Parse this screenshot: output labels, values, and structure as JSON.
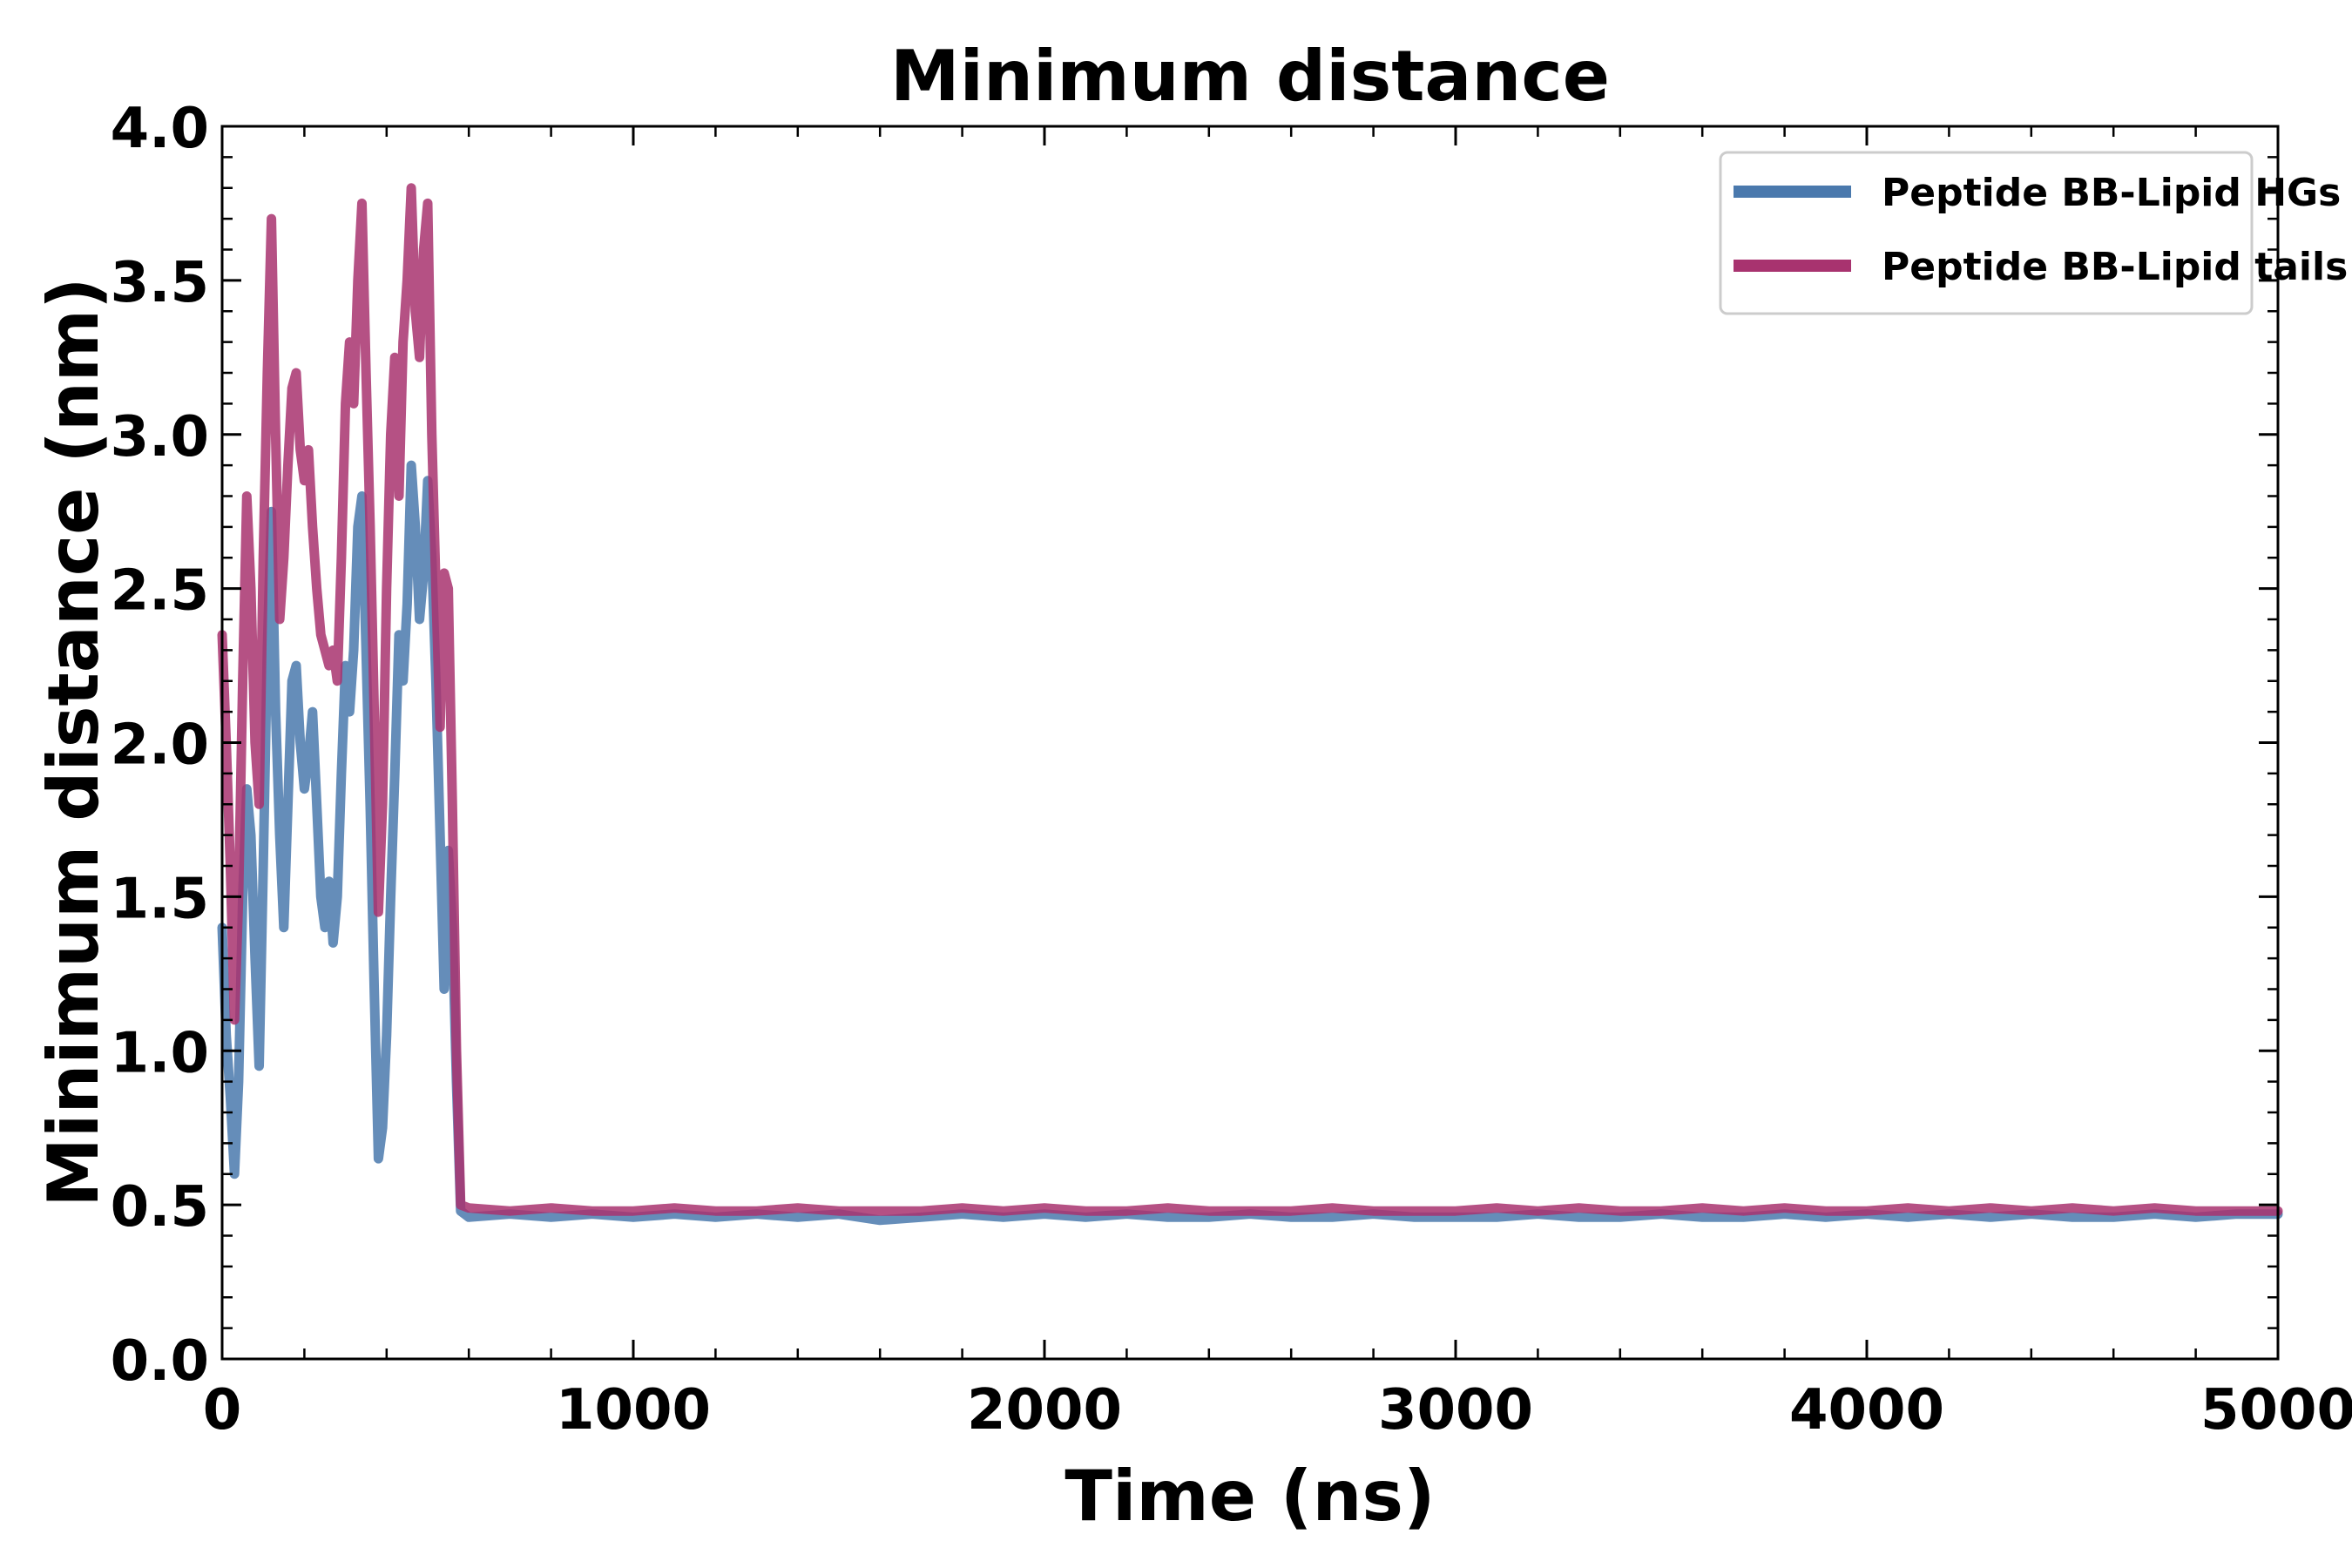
{
  "chart_data": {
    "type": "line",
    "title": "Minimum distance",
    "xlabel": "Time (ns)",
    "ylabel": "Minimum distance (nm)",
    "xlim": [
      0,
      5000
    ],
    "ylim": [
      0.0,
      4.0
    ],
    "xticks": [
      0,
      1000,
      2000,
      3000,
      4000,
      5000
    ],
    "xtick_labels": [
      "0",
      "1000",
      "2000",
      "3000",
      "4000",
      "5000"
    ],
    "yticks": [
      0.0,
      0.5,
      1.0,
      1.5,
      2.0,
      2.5,
      3.0,
      3.5,
      4.0
    ],
    "ytick_labels": [
      "0.0",
      "0.5",
      "1.0",
      "1.5",
      "2.0",
      "2.5",
      "3.0",
      "3.5",
      "4.0"
    ],
    "grid": false,
    "legend_position": "top-right",
    "series": [
      {
        "name": "Peptide BB-Lipid HGs",
        "color": "#4a79ad",
        "x": [
          0,
          10,
          20,
          30,
          40,
          50,
          60,
          70,
          80,
          90,
          100,
          110,
          120,
          130,
          140,
          150,
          160,
          170,
          180,
          190,
          200,
          210,
          220,
          230,
          240,
          250,
          260,
          270,
          280,
          290,
          300,
          310,
          320,
          330,
          340,
          350,
          360,
          370,
          380,
          390,
          400,
          410,
          420,
          430,
          440,
          450,
          460,
          470,
          480,
          490,
          500,
          510,
          520,
          530,
          540,
          550,
          560,
          570,
          580,
          600,
          700,
          800,
          900,
          1000,
          1100,
          1200,
          1300,
          1400,
          1500,
          1600,
          1700,
          1800,
          1900,
          2000,
          2100,
          2200,
          2300,
          2400,
          2500,
          2600,
          2700,
          2800,
          2900,
          3000,
          3100,
          3200,
          3300,
          3400,
          3500,
          3600,
          3700,
          3800,
          3900,
          4000,
          4100,
          4200,
          4300,
          4400,
          4500,
          4600,
          4700,
          4800,
          4900,
          5000
        ],
        "values": [
          1.4,
          1.05,
          0.85,
          0.6,
          0.9,
          1.5,
          1.85,
          1.7,
          1.3,
          0.95,
          1.6,
          2.3,
          2.75,
          2.1,
          1.7,
          1.4,
          1.8,
          2.2,
          2.25,
          2.0,
          1.85,
          1.95,
          2.1,
          1.8,
          1.5,
          1.4,
          1.55,
          1.35,
          1.5,
          1.9,
          2.25,
          2.1,
          2.3,
          2.7,
          2.8,
          2.3,
          1.8,
          1.2,
          0.65,
          0.75,
          1.05,
          1.5,
          1.9,
          2.35,
          2.2,
          2.45,
          2.9,
          2.7,
          2.4,
          2.55,
          2.85,
          2.6,
          2.2,
          1.7,
          1.2,
          1.65,
          1.4,
          0.9,
          0.48,
          0.46,
          0.47,
          0.46,
          0.47,
          0.46,
          0.47,
          0.46,
          0.47,
          0.46,
          0.47,
          0.45,
          0.46,
          0.47,
          0.46,
          0.47,
          0.46,
          0.47,
          0.46,
          0.46,
          0.47,
          0.46,
          0.46,
          0.47,
          0.46,
          0.46,
          0.46,
          0.47,
          0.46,
          0.46,
          0.47,
          0.46,
          0.46,
          0.47,
          0.46,
          0.47,
          0.46,
          0.47,
          0.46,
          0.47,
          0.46,
          0.46,
          0.47,
          0.46,
          0.47,
          0.47
        ]
      },
      {
        "name": "Peptide BB-Lipid tails",
        "color": "#a8336f",
        "x": [
          0,
          10,
          20,
          30,
          40,
          50,
          60,
          70,
          80,
          90,
          100,
          110,
          120,
          130,
          140,
          150,
          160,
          170,
          180,
          190,
          200,
          210,
          220,
          230,
          240,
          250,
          260,
          270,
          280,
          290,
          300,
          310,
          320,
          330,
          340,
          350,
          360,
          370,
          380,
          390,
          400,
          410,
          420,
          430,
          440,
          450,
          460,
          470,
          480,
          490,
          500,
          510,
          520,
          530,
          540,
          550,
          560,
          570,
          580,
          600,
          700,
          800,
          900,
          1000,
          1100,
          1200,
          1300,
          1400,
          1500,
          1600,
          1700,
          1800,
          1900,
          2000,
          2100,
          2200,
          2300,
          2400,
          2500,
          2600,
          2700,
          2800,
          2900,
          3000,
          3100,
          3200,
          3300,
          3400,
          3500,
          3600,
          3700,
          3800,
          3900,
          4000,
          4100,
          4200,
          4300,
          4400,
          4500,
          4600,
          4700,
          4800,
          4900,
          5000
        ],
        "values": [
          2.35,
          2.0,
          1.6,
          1.1,
          1.5,
          2.2,
          2.8,
          2.5,
          2.0,
          1.8,
          2.6,
          3.2,
          3.7,
          3.0,
          2.4,
          2.6,
          2.9,
          3.15,
          3.2,
          2.95,
          2.85,
          2.95,
          2.7,
          2.5,
          2.35,
          2.3,
          2.25,
          2.3,
          2.2,
          2.6,
          3.1,
          3.3,
          3.1,
          3.5,
          3.75,
          3.2,
          2.7,
          2.1,
          1.45,
          1.8,
          2.5,
          3.0,
          3.25,
          2.8,
          3.3,
          3.5,
          3.8,
          3.4,
          3.25,
          3.6,
          3.75,
          3.0,
          2.5,
          2.05,
          2.55,
          2.5,
          1.8,
          1.0,
          0.5,
          0.49,
          0.48,
          0.49,
          0.48,
          0.48,
          0.49,
          0.48,
          0.48,
          0.49,
          0.48,
          0.48,
          0.48,
          0.49,
          0.48,
          0.49,
          0.48,
          0.48,
          0.49,
          0.48,
          0.48,
          0.48,
          0.49,
          0.48,
          0.48,
          0.48,
          0.49,
          0.48,
          0.49,
          0.48,
          0.48,
          0.49,
          0.48,
          0.49,
          0.48,
          0.48,
          0.49,
          0.48,
          0.49,
          0.48,
          0.49,
          0.48,
          0.49,
          0.48,
          0.48,
          0.48
        ]
      }
    ]
  }
}
